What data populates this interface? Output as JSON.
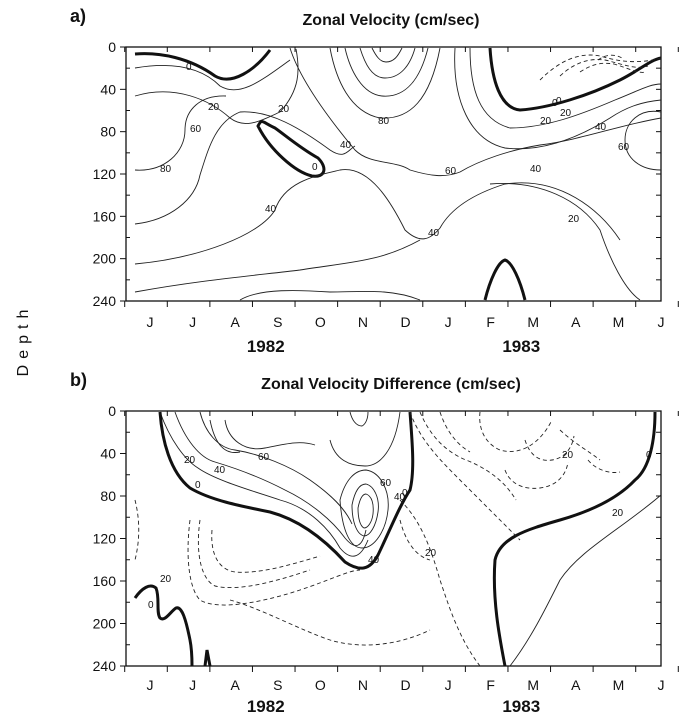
{
  "chart_data": [
    {
      "type": "contour",
      "panel": "a)",
      "title": "Zonal Velocity (cm/sec)",
      "ylabel": "Depth",
      "yticks": [
        0,
        40,
        80,
        120,
        160,
        200,
        240
      ],
      "ylim": [
        240,
        0
      ],
      "months": [
        "J",
        "J",
        "A",
        "S",
        "O",
        "N",
        "D",
        "J",
        "F",
        "M",
        "A",
        "M",
        "J"
      ],
      "years": [
        {
          "label": "1982",
          "after_month_index": 3
        },
        {
          "label": "1983",
          "after_month_index": 9
        }
      ],
      "contour_labels": [
        "0",
        "20",
        "20",
        "80",
        "60",
        "40",
        "0",
        "80",
        "40",
        "60",
        "40",
        "20",
        "0",
        "20",
        "40",
        "60",
        "40",
        "20",
        "0"
      ]
    },
    {
      "type": "contour",
      "panel": "b)",
      "title": "Zonal Velocity Difference (cm/sec)",
      "ylabel": "Depth",
      "yticks": [
        0,
        40,
        80,
        120,
        160,
        200,
        240
      ],
      "ylim": [
        240,
        0
      ],
      "months": [
        "J",
        "J",
        "A",
        "S",
        "O",
        "N",
        "D",
        "J",
        "F",
        "M",
        "A",
        "M",
        "J"
      ],
      "years": [
        {
          "label": "1982",
          "after_month_index": 3
        },
        {
          "label": "1983",
          "after_month_index": 9
        }
      ],
      "contour_labels": [
        "20",
        "40",
        "60",
        "0",
        "60",
        "40",
        "40",
        "20",
        "20",
        "0",
        "0",
        "20",
        "20",
        "0"
      ]
    }
  ]
}
